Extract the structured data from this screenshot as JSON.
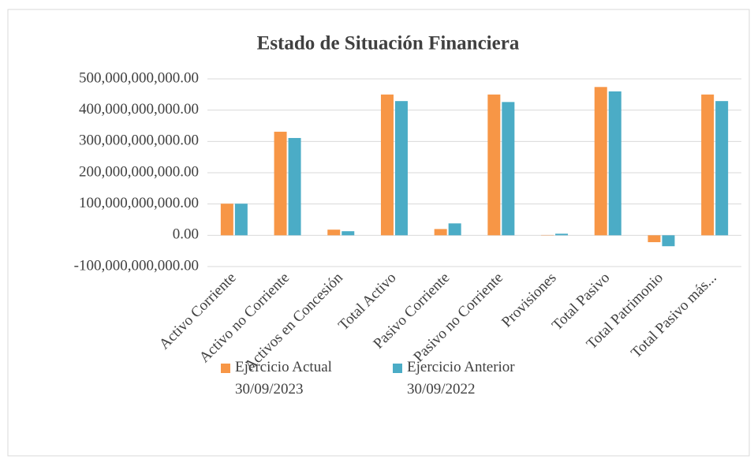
{
  "chart_data": {
    "type": "bar",
    "title": "Estado de Situación Financiera",
    "categories": [
      "Activo Corriente",
      "Activo no Corriente",
      "Activos en Concesión",
      "Total Activo",
      "Pasivo Corriente",
      "Pasivo no Corriente",
      "Provisiones",
      "Total Pasivo",
      "Total Patrimonio",
      "Total Pasivo más..."
    ],
    "series": [
      {
        "name": "Ejercicio Actual 30/09/2023",
        "color": "#f79646",
        "values": [
          101000000000,
          331000000000,
          18000000000,
          450000000000,
          20000000000,
          450000000000,
          1000000000,
          474000000000,
          -22000000000,
          450000000000
        ]
      },
      {
        "name": "Ejercicio Anterior 30/09/2022",
        "color": "#4bacc6",
        "values": [
          101000000000,
          311000000000,
          13000000000,
          429000000000,
          38000000000,
          426000000000,
          5000000000,
          460000000000,
          -35000000000,
          429000000000
        ]
      }
    ],
    "ylim": [
      -100000000000,
      500000000000
    ],
    "yticks": [
      {
        "value": -100000000000,
        "label": "-100,000,000,000.00"
      },
      {
        "value": 0,
        "label": "0.00"
      },
      {
        "value": 100000000000,
        "label": "100,000,000,000.00"
      },
      {
        "value": 200000000000,
        "label": "200,000,000,000.00"
      },
      {
        "value": 300000000000,
        "label": "300,000,000,000.00"
      },
      {
        "value": 400000000000,
        "label": "400,000,000,000.00"
      },
      {
        "value": 500000000000,
        "label": "500,000,000,000.00"
      }
    ],
    "grid": true,
    "legend": "bottom"
  }
}
